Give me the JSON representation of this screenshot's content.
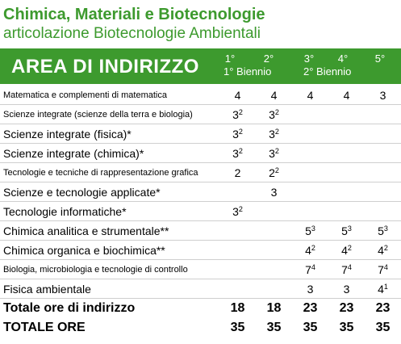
{
  "header": {
    "title": "Chimica, Materiali e Biotecnologie",
    "subtitle": "articolazione Biotecnologie Ambientali"
  },
  "table": {
    "area": "AREA DI INDIRIZZO",
    "years": [
      "1°",
      "2°",
      "3°",
      "4°",
      "5°"
    ],
    "groups": [
      "1° Biennio",
      "2° Biennio"
    ],
    "rows": [
      {
        "subject": "Matematica e complementi di matematica",
        "cells": [
          {
            "v": "4"
          },
          {
            "v": "4"
          },
          {
            "v": "4"
          },
          {
            "v": "4"
          },
          {
            "v": "3"
          }
        ]
      },
      {
        "subject": "Scienze integrate (scienze della terra e biologia)",
        "cells": [
          {
            "v": "3",
            "sup": "2"
          },
          {
            "v": "3",
            "sup": "2"
          },
          null,
          null,
          null
        ]
      },
      {
        "subject": "Scienze integrate (fisica)*",
        "cells": [
          {
            "v": "3",
            "sup": "2"
          },
          {
            "v": "3",
            "sup": "2"
          },
          null,
          null,
          null
        ]
      },
      {
        "subject": "Scienze integrate (chimica)*",
        "cells": [
          {
            "v": "3",
            "sup": "2"
          },
          {
            "v": "3",
            "sup": "2"
          },
          null,
          null,
          null
        ]
      },
      {
        "subject": "Tecnologie e tecniche di rappresentazione grafica",
        "cells": [
          {
            "v": "2"
          },
          {
            "v": "2",
            "sup": "2"
          },
          null,
          null,
          null
        ]
      },
      {
        "subject": "Scienze e tecnologie applicate*",
        "cells": [
          null,
          {
            "v": "3"
          },
          null,
          null,
          null
        ]
      },
      {
        "subject": "Tecnologie informatiche*",
        "cells": [
          {
            "v": "3",
            "sup": "2"
          },
          null,
          null,
          null,
          null
        ]
      },
      {
        "subject": "Chimica analitica e strumentale**",
        "cells": [
          null,
          null,
          {
            "v": "5",
            "sup": "3"
          },
          {
            "v": "5",
            "sup": "3"
          },
          {
            "v": "5",
            "sup": "3"
          }
        ]
      },
      {
        "subject": "Chimica organica e biochimica**",
        "cells": [
          null,
          null,
          {
            "v": "4",
            "sup": "2"
          },
          {
            "v": "4",
            "sup": "2"
          },
          {
            "v": "4",
            "sup": "2"
          }
        ]
      },
      {
        "subject": "Biologia, microbiologia e tecnologie di controllo",
        "cells": [
          null,
          null,
          {
            "v": "7",
            "sup": "4"
          },
          {
            "v": "7",
            "sup": "4"
          },
          {
            "v": "7",
            "sup": "4"
          }
        ]
      },
      {
        "subject": "Fisica ambientale",
        "cells": [
          null,
          null,
          {
            "v": "3"
          },
          {
            "v": "3"
          },
          {
            "v": "4",
            "sup": "1"
          }
        ]
      }
    ],
    "totals": [
      {
        "label": "Totale ore di indirizzo",
        "values": [
          "18",
          "18",
          "23",
          "23",
          "23"
        ]
      },
      {
        "label": "TOTALE ORE",
        "values": [
          "35",
          "35",
          "35",
          "35",
          "35"
        ]
      }
    ]
  }
}
